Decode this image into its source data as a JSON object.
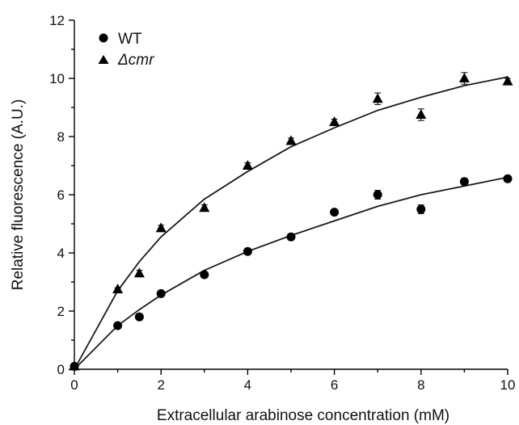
{
  "chart_data": {
    "type": "scatter",
    "xlabel": "Extracellular arabinose concentration (mM)",
    "ylabel": "Relative fluorescence (A.U.)",
    "xlim": [
      0,
      10
    ],
    "ylim": [
      0,
      12
    ],
    "x_ticks": [
      0,
      2,
      4,
      6,
      8,
      10
    ],
    "y_ticks": [
      0,
      2,
      4,
      6,
      8,
      10,
      12
    ],
    "grid": false,
    "legend_position": "top-left",
    "series": [
      {
        "name": "WT",
        "marker": "circle",
        "color": "#000000",
        "x": [
          0,
          1,
          1.5,
          2,
          3,
          4,
          5,
          6,
          7,
          8,
          9,
          10
        ],
        "y": [
          0.1,
          1.5,
          1.8,
          2.6,
          3.25,
          4.05,
          4.55,
          5.4,
          6.0,
          5.5,
          6.45,
          6.55
        ],
        "error": [
          0,
          0.05,
          0.05,
          0.05,
          0.05,
          0.05,
          0.05,
          0.05,
          0.15,
          0.15,
          0.1,
          0.05
        ],
        "fit_x": [
          0,
          1,
          1.5,
          2,
          3,
          4,
          5,
          6,
          7,
          8,
          9,
          10
        ],
        "fit_y": [
          0,
          1.5,
          2.05,
          2.55,
          3.4,
          4.05,
          4.6,
          5.1,
          5.6,
          6.0,
          6.3,
          6.6
        ]
      },
      {
        "name": "Δcmr",
        "marker": "triangle",
        "color": "#000000",
        "x": [
          0,
          1,
          1.5,
          2,
          3,
          4,
          5,
          6,
          7,
          8,
          9,
          10
        ],
        "y": [
          0.1,
          2.75,
          3.3,
          4.85,
          5.55,
          7.0,
          7.85,
          8.5,
          9.3,
          8.75,
          10.0,
          9.9
        ],
        "error": [
          0,
          0.05,
          0.1,
          0.1,
          0.1,
          0.1,
          0.1,
          0.1,
          0.2,
          0.2,
          0.2,
          0.1
        ],
        "fit_x": [
          0,
          1,
          1.5,
          2,
          3,
          4,
          5,
          6,
          7,
          8,
          9,
          10
        ],
        "fit_y": [
          0,
          2.7,
          3.7,
          4.55,
          5.85,
          6.8,
          7.65,
          8.3,
          8.9,
          9.35,
          9.75,
          10.05
        ]
      }
    ]
  }
}
